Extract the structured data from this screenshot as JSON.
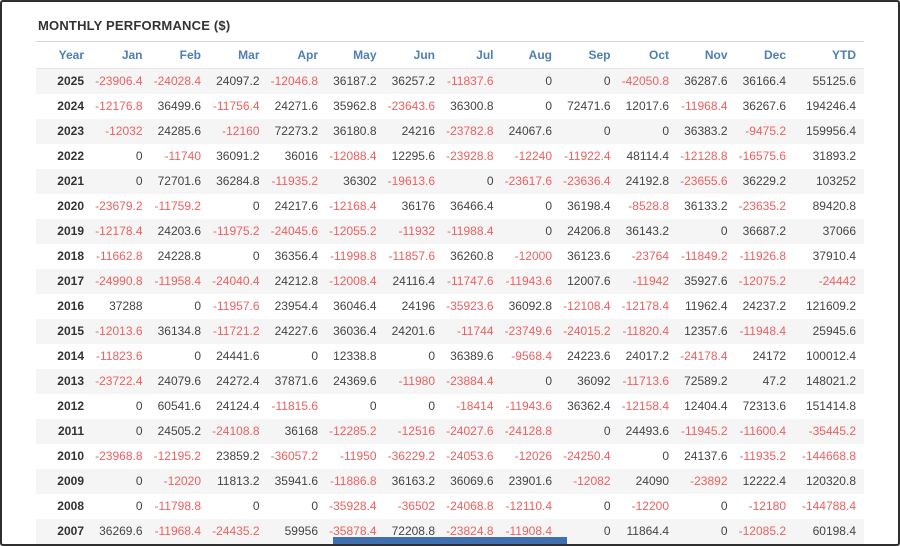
{
  "page": {
    "title": "MONTHLY PERFORMANCE ($)"
  },
  "colors": {
    "header_text": "#4d7fb2",
    "negative": "#ee5f5f",
    "positive": "#444444",
    "row_stripe": "#f5f5f5",
    "accent_bar": "#3f6fae",
    "frame_border": "#2f2f2f"
  },
  "table": {
    "columns": [
      "Year",
      "Jan",
      "Feb",
      "Mar",
      "Apr",
      "May",
      "Jun",
      "Jul",
      "Aug",
      "Sep",
      "Oct",
      "Nov",
      "Dec",
      "YTD"
    ],
    "rows": [
      {
        "year": "2025",
        "values": [
          -23906.4,
          -24028.4,
          24097.2,
          -12046.8,
          36187.2,
          36257.2,
          -11837.6,
          0,
          0,
          -42050.8,
          36287.6,
          36166.4,
          55125.6
        ]
      },
      {
        "year": "2024",
        "values": [
          -12176.8,
          36499.6,
          -11756.4,
          24271.6,
          35962.8,
          -23643.6,
          36300.8,
          0,
          72471.6,
          12017.6,
          -11968.4,
          36267.6,
          194246.4
        ]
      },
      {
        "year": "2023",
        "values": [
          -12032,
          24285.6,
          -12160,
          72273.2,
          36180.8,
          24216,
          -23782.8,
          24067.6,
          0,
          0,
          36383.2,
          -9475.2,
          159956.4
        ]
      },
      {
        "year": "2022",
        "values": [
          0,
          -11740,
          36091.2,
          36016,
          -12088.4,
          12295.6,
          -23928.8,
          -12240,
          -11922.4,
          48114.4,
          -12128.8,
          -16575.6,
          31893.2
        ]
      },
      {
        "year": "2021",
        "values": [
          0,
          72701.6,
          36284.8,
          -11935.2,
          36302,
          -19613.6,
          0,
          -23617.6,
          -23636.4,
          24192.8,
          -23655.6,
          36229.2,
          103252
        ]
      },
      {
        "year": "2020",
        "values": [
          -23679.2,
          -11759.2,
          0,
          24217.6,
          -12168.4,
          36176,
          36466.4,
          0,
          36198.4,
          -8528.8,
          36133.2,
          -23635.2,
          89420.8
        ]
      },
      {
        "year": "2019",
        "values": [
          -12178.4,
          24203.6,
          -11975.2,
          -24045.6,
          -12055.2,
          -11932,
          -11988.4,
          0,
          24206.8,
          36143.2,
          0,
          36687.2,
          37066
        ]
      },
      {
        "year": "2018",
        "values": [
          -11662.8,
          24228.8,
          0,
          36356.4,
          -11998.8,
          -11857.6,
          36260.8,
          -12000,
          36123.6,
          -23764,
          -11849.2,
          -11926.8,
          37910.4
        ]
      },
      {
        "year": "2017",
        "values": [
          -24990.8,
          -11958.4,
          -24040.4,
          24212.8,
          -12008.4,
          24116.4,
          -11747.6,
          -11943.6,
          12007.6,
          -11942,
          35927.6,
          -12075.2,
          -24442
        ]
      },
      {
        "year": "2016",
        "values": [
          37288,
          0,
          -11957.6,
          23954.4,
          36046.4,
          24196,
          -35923.6,
          36092.8,
          -12108.4,
          -12178.4,
          11962.4,
          24237.2,
          121609.2
        ]
      },
      {
        "year": "2015",
        "values": [
          -12013.6,
          36134.8,
          -11721.2,
          24227.6,
          36036.4,
          24201.6,
          -11744,
          -23749.6,
          -24015.2,
          -11820.4,
          12357.6,
          -11948.4,
          25945.6
        ]
      },
      {
        "year": "2014",
        "values": [
          -11823.6,
          0,
          24441.6,
          0,
          12338.8,
          0,
          36389.6,
          -9568.4,
          24223.6,
          24017.2,
          -24178.4,
          24172,
          100012.4
        ]
      },
      {
        "year": "2013",
        "values": [
          -23722.4,
          24079.6,
          24272.4,
          37871.6,
          24369.6,
          -11980,
          -23884.4,
          0,
          36092,
          -11713.6,
          72589.2,
          47.2,
          148021.2
        ]
      },
      {
        "year": "2012",
        "values": [
          0,
          60541.6,
          24124.4,
          -11815.6,
          0,
          0,
          -18414,
          -11943.6,
          36362.4,
          -12158.4,
          12404.4,
          72313.6,
          151414.8
        ]
      },
      {
        "year": "2011",
        "values": [
          0,
          24505.2,
          -24108.8,
          36168,
          -12285.2,
          -12516,
          -24027.6,
          -24128.8,
          0,
          24493.6,
          -11945.2,
          -11600.4,
          -35445.2
        ]
      },
      {
        "year": "2010",
        "values": [
          -23968.8,
          -12195.2,
          23859.2,
          -36057.2,
          -11950,
          -36229.2,
          -24053.6,
          -12026,
          -24250.4,
          0,
          24137.6,
          -11935.2,
          -144668.8
        ]
      },
      {
        "year": "2009",
        "values": [
          0,
          -12020,
          11813.2,
          35941.6,
          -11886.8,
          36163.2,
          36069.6,
          23901.6,
          -12082,
          24090,
          -23892,
          12222.4,
          120320.8
        ]
      },
      {
        "year": "2008",
        "values": [
          0,
          -11798.8,
          0,
          0,
          -35928.4,
          -36502,
          -24068.8,
          -12110.4,
          0,
          -12200,
          0,
          -12180,
          -144788.4
        ]
      },
      {
        "year": "2007",
        "values": [
          36269.6,
          -11968.4,
          -24435.2,
          59956,
          -35878.4,
          72208.8,
          -23824.8,
          -11908.4,
          0,
          11864.4,
          0,
          -12085.2,
          60198.4
        ]
      }
    ]
  }
}
